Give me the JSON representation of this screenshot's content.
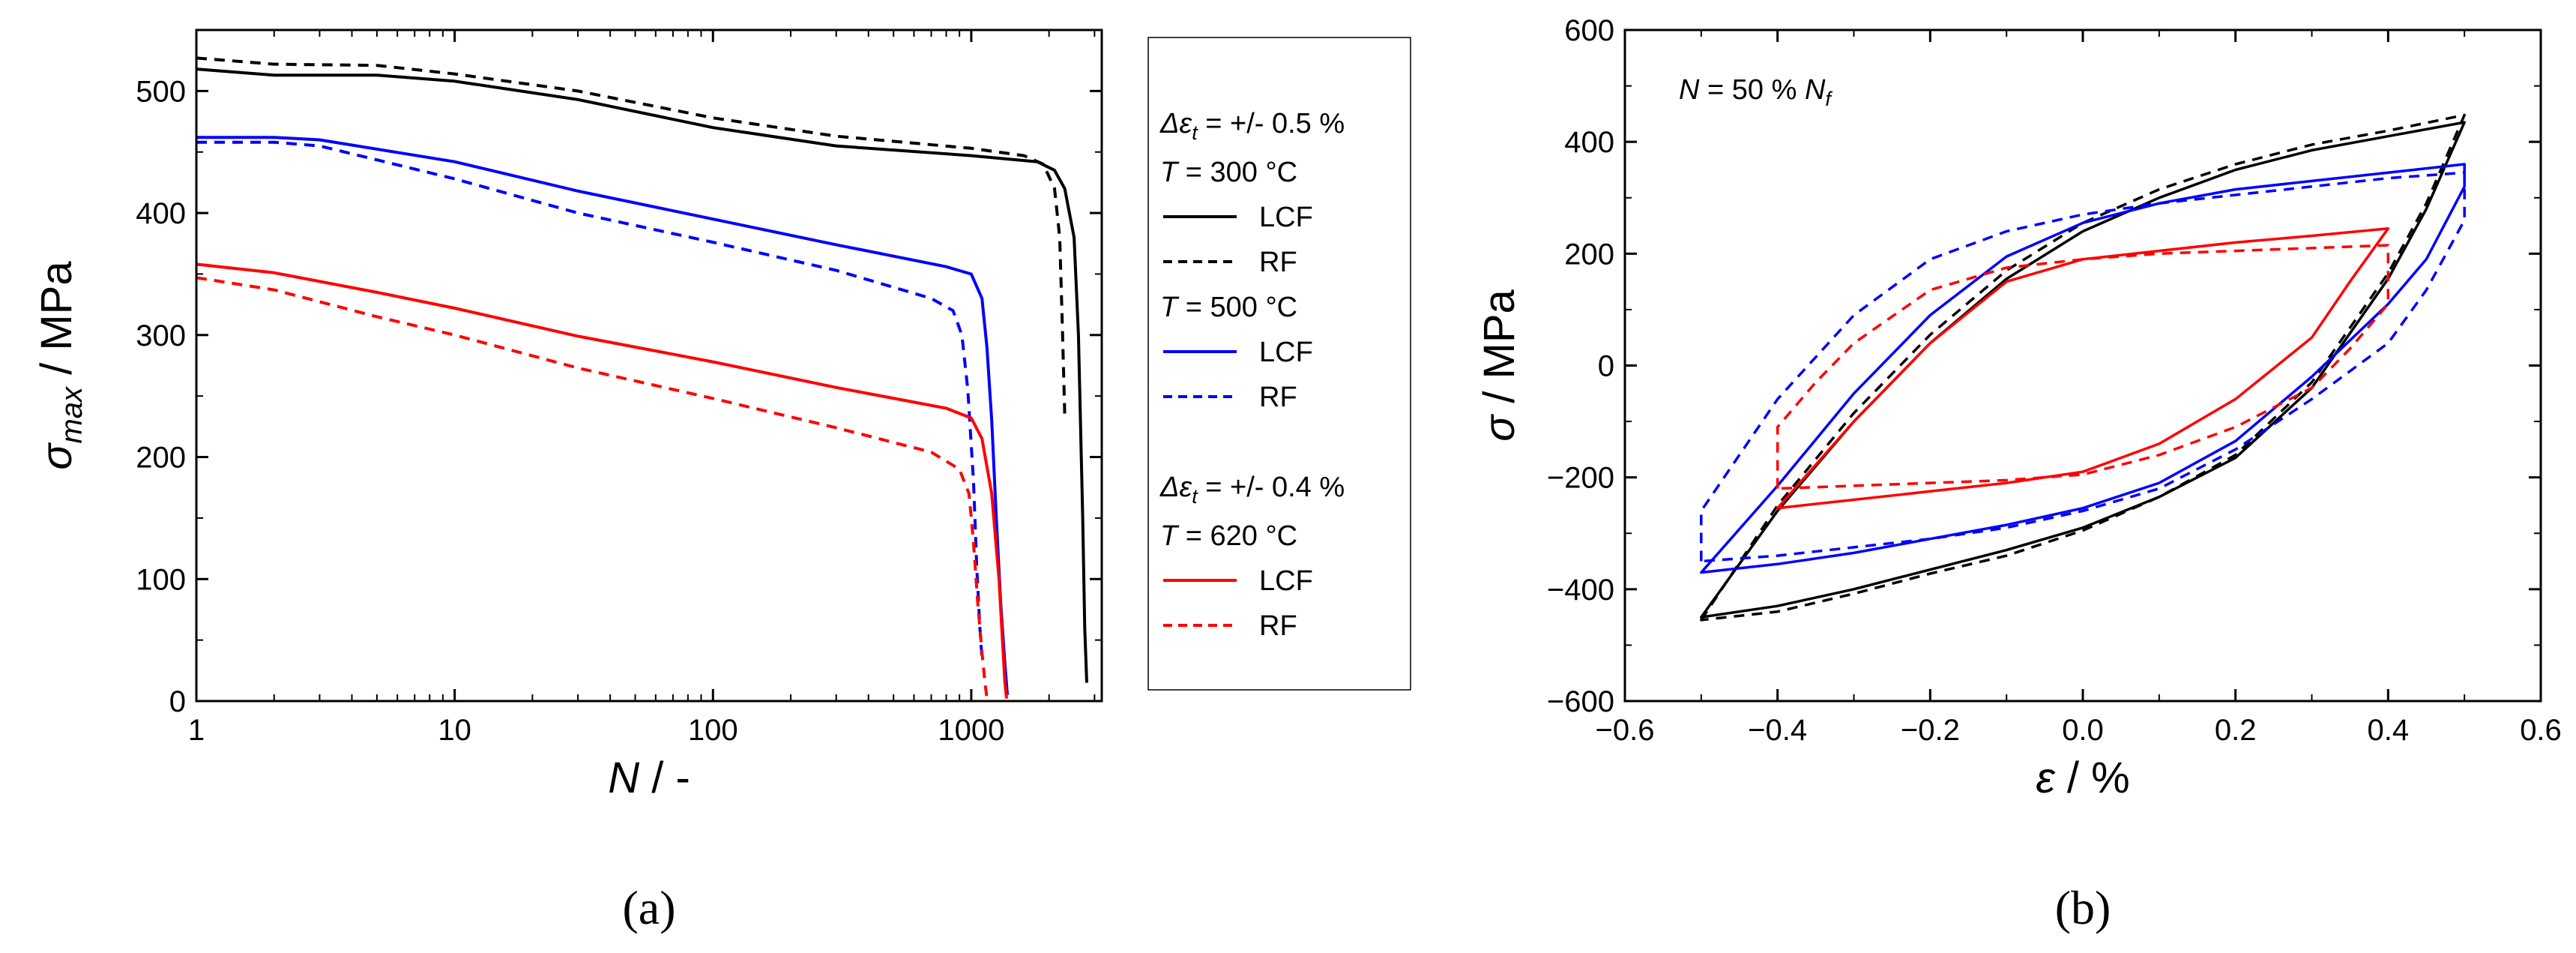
{
  "chart_data": [
    {
      "type": "line",
      "panel_label": "(a)",
      "xscale": "log",
      "xlim": [
        1,
        3200
      ],
      "ylim": [
        0,
        550
      ],
      "xticks": [
        1,
        10,
        100,
        1000
      ],
      "xtick_labels": [
        "1",
        "10",
        "100",
        "1000"
      ],
      "yticks": [
        0,
        100,
        200,
        300,
        400,
        500
      ],
      "ytick_labels": [
        "0",
        "100",
        "200",
        "300",
        "400",
        "500"
      ],
      "xlabel": {
        "main": "N",
        "rest": " / -"
      },
      "ylabel": {
        "main": "σ",
        "sub": "max",
        "rest": " / MPa"
      },
      "legend": {
        "placement": "right",
        "groups": [
          {
            "header": {
              "sym": "Δε",
              "sub": "t",
              "rest": " = +/- 0.5 %"
            }
          },
          {
            "header": {
              "sym": "T",
              "rest": " = 300 °C"
            },
            "entries": [
              {
                "label": "LCF",
                "color": "#000000",
                "dash": "solid"
              },
              {
                "label": "RF",
                "color": "#000000",
                "dash": "dashed"
              }
            ]
          },
          {
            "header": {
              "sym": "T",
              "rest": " = 500 °C"
            },
            "entries": [
              {
                "label": "LCF",
                "color": "#0000ff",
                "dash": "solid"
              },
              {
                "label": "RF",
                "color": "#0000ff",
                "dash": "dashed"
              }
            ]
          },
          {
            "header": {
              "sym": "Δε",
              "sub": "t",
              "rest": " = +/- 0.4 %"
            }
          },
          {
            "header": {
              "sym": "T",
              "rest": " = 620 °C"
            },
            "entries": [
              {
                "label": "LCF",
                "color": "#ff0000",
                "dash": "solid"
              },
              {
                "label": "RF",
                "color": "#ff0000",
                "dash": "dashed"
              }
            ]
          }
        ]
      },
      "series": [
        {
          "name": "300 °C LCF",
          "color": "#000000",
          "dash": "solid",
          "x": [
            1,
            2,
            5,
            10,
            30,
            100,
            300,
            1000,
            1800,
            2100,
            2300,
            2500,
            2600,
            2700,
            2750,
            2800
          ],
          "y": [
            518,
            513,
            513,
            508,
            493,
            470,
            455,
            447,
            442,
            435,
            420,
            380,
            300,
            150,
            60,
            15
          ]
        },
        {
          "name": "300 °C RF",
          "color": "#000000",
          "dash": "dashed",
          "x": [
            1,
            2,
            5,
            10,
            30,
            100,
            300,
            1000,
            1600,
            1900,
            2100,
            2200,
            2250,
            2300
          ],
          "y": [
            527,
            522,
            521,
            514,
            500,
            478,
            463,
            453,
            447,
            440,
            420,
            380,
            310,
            235
          ]
        },
        {
          "name": "500 °C LCF",
          "color": "#0000ff",
          "dash": "solid",
          "x": [
            1,
            2,
            3,
            10,
            30,
            100,
            300,
            800,
            1000,
            1100,
            1150,
            1200,
            1250,
            1300,
            1350,
            1380
          ],
          "y": [
            462,
            462,
            460,
            442,
            418,
            395,
            374,
            356,
            350,
            330,
            290,
            230,
            150,
            80,
            30,
            5
          ]
        },
        {
          "name": "500 °C RF",
          "color": "#0000ff",
          "dash": "dashed",
          "x": [
            1,
            2,
            3,
            10,
            30,
            100,
            300,
            700,
            850,
            920,
            970,
            1020,
            1050,
            1080,
            1100
          ],
          "y": [
            458,
            458,
            455,
            428,
            400,
            376,
            353,
            330,
            320,
            300,
            255,
            180,
            110,
            60,
            35
          ]
        },
        {
          "name": "620 °C LCF",
          "color": "#ff0000",
          "dash": "solid",
          "x": [
            1,
            2,
            5,
            10,
            30,
            100,
            300,
            800,
            1000,
            1100,
            1200,
            1280,
            1320,
            1350,
            1370
          ],
          "y": [
            358,
            351,
            335,
            322,
            299,
            278,
            257,
            240,
            232,
            215,
            170,
            100,
            50,
            15,
            2
          ]
        },
        {
          "name": "620 °C RF",
          "color": "#ff0000",
          "dash": "dashed",
          "x": [
            1,
            2,
            5,
            10,
            30,
            100,
            300,
            700,
            900,
            980,
            1020,
            1060,
            1100,
            1130,
            1150
          ],
          "y": [
            347,
            337,
            315,
            300,
            273,
            248,
            224,
            204,
            190,
            170,
            130,
            80,
            40,
            15,
            2
          ]
        }
      ]
    },
    {
      "type": "line",
      "panel_label": "(b)",
      "xlim": [
        -0.6,
        0.6
      ],
      "ylim": [
        -600,
        600
      ],
      "xticks": [
        -0.6,
        -0.4,
        -0.2,
        0.0,
        0.2,
        0.4,
        0.6
      ],
      "xtick_labels": [
        "−0.6",
        "−0.4",
        "−0.2",
        "0.0",
        "0.2",
        "0.4",
        "0.6"
      ],
      "yticks": [
        -600,
        -400,
        -200,
        0,
        200,
        400,
        600
      ],
      "ytick_labels": [
        "−600",
        "−400",
        "−200",
        "0",
        "200",
        "400",
        "600"
      ],
      "xlabel": {
        "main": "ε",
        "rest": " / %"
      },
      "ylabel": {
        "main": "σ",
        "rest": " / MPa"
      },
      "annotation": {
        "main": "N",
        "mid": " = 50 % ",
        "sym": "N",
        "sub": "f"
      },
      "series": [
        {
          "name": "300 °C LCF",
          "color": "#000000",
          "dash": "solid",
          "x": [
            -0.5,
            -0.4,
            -0.3,
            -0.2,
            -0.1,
            0.0,
            0.1,
            0.2,
            0.3,
            0.4,
            0.5,
            0.45,
            0.4,
            0.3,
            0.2,
            0.1,
            0.0,
            -0.1,
            -0.2,
            -0.3,
            -0.4,
            -0.5
          ],
          "y": [
            -450,
            -260,
            -100,
            40,
            155,
            240,
            300,
            350,
            385,
            410,
            435,
            280,
            155,
            -40,
            -165,
            -235,
            -290,
            -330,
            -365,
            -400,
            -430,
            -450
          ]
        },
        {
          "name": "300 °C RF",
          "color": "#000000",
          "dash": "dashed",
          "x": [
            -0.5,
            -0.4,
            -0.3,
            -0.2,
            -0.1,
            0.0,
            0.1,
            0.2,
            0.3,
            0.4,
            0.5,
            0.45,
            0.4,
            0.3,
            0.2,
            0.1,
            0.0,
            -0.1,
            -0.2,
            -0.3,
            -0.4,
            -0.5
          ],
          "y": [
            -455,
            -250,
            -85,
            55,
            170,
            255,
            315,
            360,
            395,
            420,
            448,
            290,
            165,
            -30,
            -160,
            -235,
            -295,
            -340,
            -372,
            -408,
            -440,
            -455
          ]
        },
        {
          "name": "500 °C LCF",
          "color": "#0000ff",
          "dash": "solid",
          "x": [
            -0.5,
            -0.4,
            -0.3,
            -0.2,
            -0.1,
            0.0,
            0.1,
            0.2,
            0.3,
            0.4,
            0.5,
            0.5,
            0.45,
            0.4,
            0.3,
            0.2,
            0.1,
            0.0,
            -0.1,
            -0.2,
            -0.3,
            -0.4,
            -0.5,
            -0.5
          ],
          "y": [
            -370,
            -215,
            -50,
            90,
            195,
            255,
            290,
            315,
            330,
            345,
            360,
            320,
            190,
            110,
            -20,
            -135,
            -210,
            -255,
            -285,
            -310,
            -335,
            -355,
            -370,
            -370
          ]
        },
        {
          "name": "500 °C RF",
          "color": "#0000ff",
          "dash": "dashed",
          "x": [
            -0.5,
            -0.5,
            -0.45,
            -0.4,
            -0.3,
            -0.2,
            -0.1,
            0.0,
            0.1,
            0.2,
            0.3,
            0.4,
            0.5,
            0.5,
            0.45,
            0.4,
            0.3,
            0.2,
            0.1,
            0.0,
            -0.1,
            -0.2,
            -0.3,
            -0.4,
            -0.5
          ],
          "y": [
            -350,
            -260,
            -160,
            -60,
            90,
            190,
            240,
            270,
            290,
            305,
            320,
            335,
            345,
            260,
            135,
            40,
            -60,
            -150,
            -220,
            -260,
            -290,
            -310,
            -325,
            -340,
            -350
          ]
        },
        {
          "name": "620 °C LCF",
          "color": "#ff0000",
          "dash": "solid",
          "x": [
            -0.4,
            -0.3,
            -0.2,
            -0.1,
            0.0,
            0.1,
            0.2,
            0.3,
            0.4,
            0.35,
            0.3,
            0.2,
            0.1,
            0.0,
            -0.1,
            -0.2,
            -0.3,
            -0.4
          ],
          "y": [
            -255,
            -100,
            40,
            150,
            190,
            205,
            220,
            232,
            245,
            150,
            50,
            -60,
            -140,
            -190,
            -210,
            -225,
            -240,
            -255
          ]
        },
        {
          "name": "620 °C RF",
          "color": "#ff0000",
          "dash": "dashed",
          "x": [
            -0.4,
            -0.4,
            -0.35,
            -0.3,
            -0.2,
            -0.1,
            0.0,
            0.1,
            0.2,
            0.3,
            0.4,
            0.4,
            0.35,
            0.3,
            0.2,
            0.1,
            0.0,
            -0.1,
            -0.2,
            -0.3,
            -0.4
          ],
          "y": [
            -220,
            -110,
            -30,
            40,
            135,
            175,
            190,
            200,
            205,
            210,
            215,
            110,
            30,
            -40,
            -110,
            -160,
            -195,
            -205,
            -210,
            -215,
            -220
          ]
        }
      ]
    }
  ]
}
